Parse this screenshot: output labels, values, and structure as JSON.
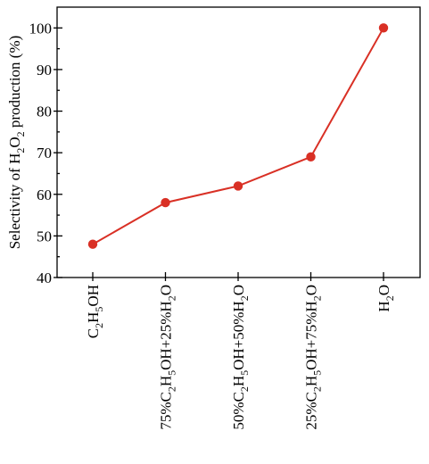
{
  "chart_data": {
    "type": "line",
    "categories": [
      "C<sub>2</sub>H<sub>5</sub>OH",
      "75%C<sub>2</sub>H<sub>5</sub>OH+25%H<sub>2</sub>O",
      "50%C<sub>2</sub>H<sub>5</sub>OH+50%H<sub>2</sub>O",
      "25%C<sub>2</sub>H<sub>5</sub>OH+75%H<sub>2</sub>O",
      "H<sub>2</sub>O"
    ],
    "series": [
      {
        "values": [
          48,
          58,
          62,
          69,
          100
        ],
        "color": "#d93025"
      }
    ],
    "ylabel": "Selectivity of H<sub>2</sub>O<sub>2</sub> production (%)",
    "xlabel": "",
    "ylim": [
      40,
      105
    ],
    "yticks": [
      40,
      50,
      60,
      70,
      80,
      90,
      100
    ],
    "grid": false
  }
}
